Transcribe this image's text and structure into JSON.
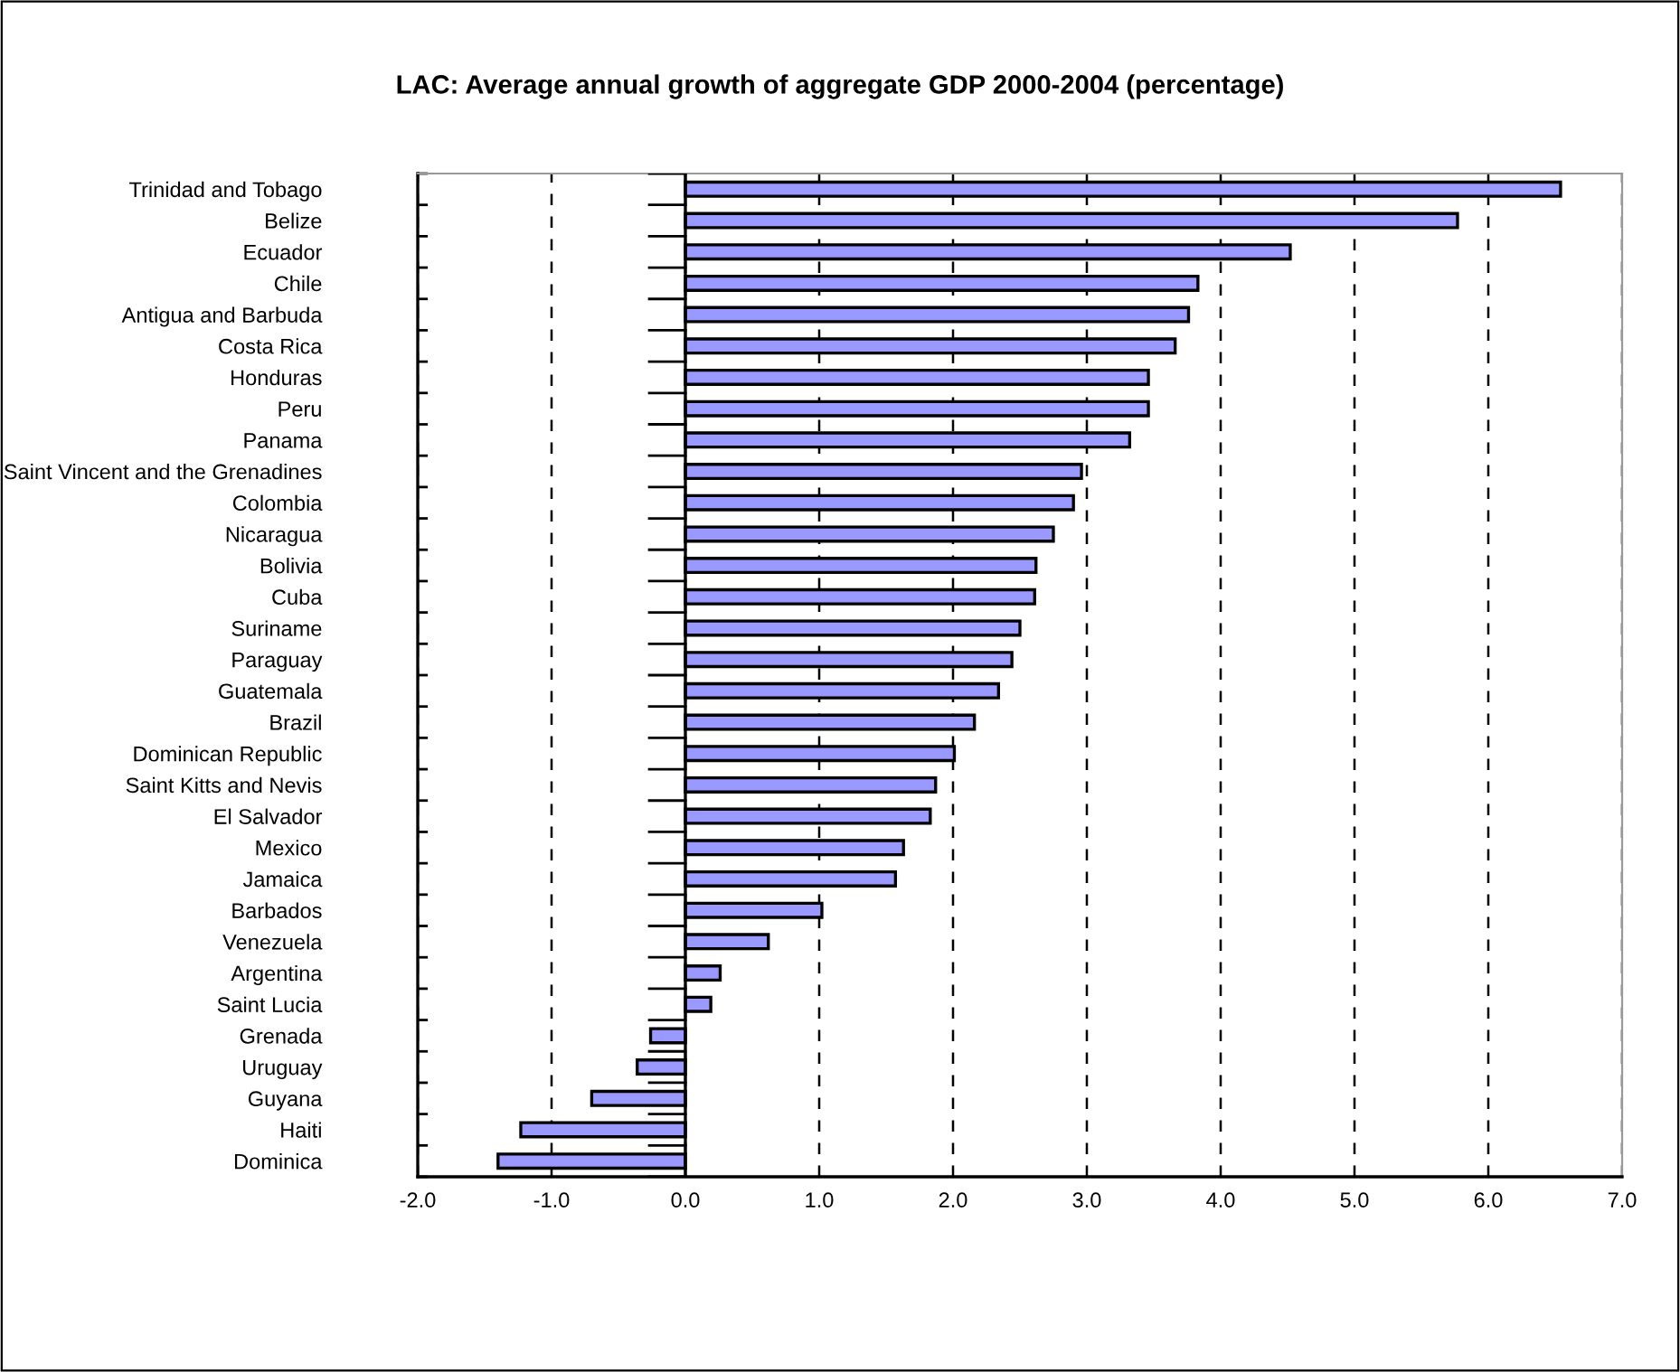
{
  "chart_data": {
    "type": "bar",
    "orientation": "horizontal",
    "title": "LAC: Average annual growth of aggregate GDP 2000-2004 (percentage)",
    "categories": [
      "Trinidad and Tobago",
      "Belize",
      "Ecuador",
      "Chile",
      "Antigua and Barbuda",
      "Costa Rica",
      "Honduras",
      "Peru",
      "Panama",
      "Saint Vincent and the Grenadines",
      "Colombia",
      "Nicaragua",
      "Bolivia",
      "Cuba",
      "Suriname",
      "Paraguay",
      "Guatemala",
      "Brazil",
      "Dominican Republic",
      "Saint Kitts and Nevis",
      "El Salvador",
      "Mexico",
      "Jamaica",
      "Barbados",
      "Venezuela",
      "Argentina",
      "Saint Lucia",
      "Grenada",
      "Uruguay",
      "Guyana",
      "Haiti",
      "Dominica"
    ],
    "values": [
      6.54,
      5.77,
      4.52,
      3.83,
      3.76,
      3.66,
      3.46,
      3.46,
      3.32,
      2.96,
      2.9,
      2.75,
      2.62,
      2.61,
      2.5,
      2.44,
      2.34,
      2.16,
      2.01,
      1.87,
      1.83,
      1.63,
      1.57,
      1.02,
      0.62,
      0.26,
      0.19,
      -0.26,
      -0.36,
      -0.7,
      -1.23,
      -1.4
    ],
    "color": "#9999ff",
    "xlim": [
      -2.0,
      7.0
    ],
    "xticks": [
      {
        "value": -2,
        "label": "-2.0"
      },
      {
        "value": -1,
        "label": "-1.0"
      },
      {
        "value": 0,
        "label": "0.0"
      },
      {
        "value": 1,
        "label": "1.0"
      },
      {
        "value": 2,
        "label": "2.0"
      },
      {
        "value": 3,
        "label": "3.0"
      },
      {
        "value": 4,
        "label": "4.0"
      },
      {
        "value": 5,
        "label": "5.0"
      },
      {
        "value": 6,
        "label": "6.0"
      },
      {
        "value": 7,
        "label": "7.0"
      }
    ],
    "grid": "x"
  }
}
